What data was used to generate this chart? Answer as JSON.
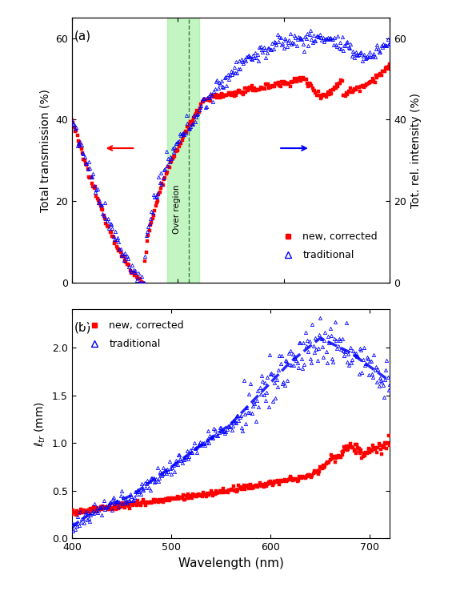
{
  "panel_a": {
    "title": "(a)",
    "ylabel_left": "Total transmission (%)",
    "ylabel_right": "Tot. rel. intensity (%)",
    "xlim": [
      400,
      700
    ],
    "ylim_left": [
      0,
      65
    ],
    "ylim_right": [
      0,
      65
    ],
    "yticks_left": [
      0,
      20,
      40,
      60
    ],
    "yticks_right": [
      0,
      20,
      40,
      60
    ],
    "xticks": [
      400,
      500,
      600,
      700
    ],
    "green_region": [
      490,
      520
    ],
    "dashed_line_x": 510,
    "legend_new_corrected": "new, corrected",
    "legend_traditional": "traditional"
  },
  "panel_b": {
    "title": "(b)",
    "xlabel": "Wavelength (nm)",
    "ylabel": "$\\ell_{tr}$ (mm)",
    "xlim": [
      400,
      720
    ],
    "ylim": [
      0.0,
      2.4
    ],
    "yticks": [
      0.0,
      0.5,
      1.0,
      1.5,
      2.0
    ],
    "xticks": [
      400,
      500,
      600,
      700
    ],
    "legend_new_corrected": "new, corrected",
    "legend_traditional": "traditional"
  },
  "colors": {
    "red": "#FF0000",
    "blue": "#0000FF",
    "green_fill": "#90EE90",
    "green_edge": "#3a7a3a"
  },
  "figsize": [
    5.8,
    7.43
  ],
  "dpi": 100
}
